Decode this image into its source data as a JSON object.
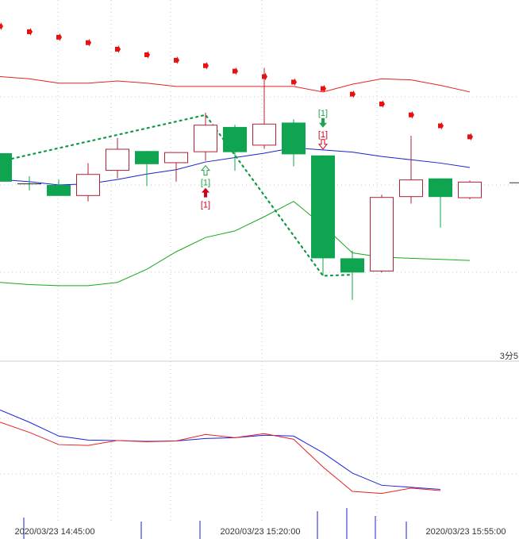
{
  "chart_data": {
    "type": "candlestick",
    "timeframe_label": "3分5",
    "x_tick_labels": [
      "2020/03/23 14:45:00",
      "2020/03/23 15:20:00",
      "2020/03/23 15:55:00"
    ],
    "candles": [
      {
        "open": 94.5,
        "close": 93.2,
        "high": 94.5,
        "low": 93.2
      },
      {
        "open": 93.1,
        "close": 93.05,
        "high": 93.45,
        "low": 92.8
      },
      {
        "open": 93.05,
        "close": 92.55,
        "high": 93.3,
        "low": 92.55
      },
      {
        "open": 92.55,
        "close": 93.55,
        "high": 94.05,
        "low": 92.3
      },
      {
        "open": 93.7,
        "close": 94.7,
        "high": 95.2,
        "low": 93.35
      },
      {
        "open": 94.6,
        "close": 94.0,
        "high": 94.6,
        "low": 93.0
      },
      {
        "open": 94.05,
        "close": 94.55,
        "high": 94.55,
        "low": 93.2
      },
      {
        "open": 94.55,
        "close": 95.8,
        "high": 96.35,
        "low": 94.15
      },
      {
        "open": 95.7,
        "close": 94.55,
        "high": 95.8,
        "low": 93.7
      },
      {
        "open": 94.85,
        "close": 95.85,
        "high": 98.4,
        "low": 94.7
      },
      {
        "open": 95.9,
        "close": 94.45,
        "high": 96.05,
        "low": 93.9
      },
      {
        "open": 94.4,
        "close": 89.7,
        "high": 94.4,
        "low": 88.9
      },
      {
        "open": 89.7,
        "close": 89.05,
        "high": 90.05,
        "low": 87.8
      },
      {
        "open": 89.1,
        "close": 92.5,
        "high": 92.6,
        "low": 89.05
      },
      {
        "open": 92.5,
        "close": 93.3,
        "high": 95.3,
        "low": 92.2
      },
      {
        "open": 93.35,
        "close": 92.5,
        "high": 93.35,
        "low": 91.1
      },
      {
        "open": 92.45,
        "close": 93.2,
        "high": 93.25,
        "low": 92.4
      }
    ],
    "bollinger_upper": [
      98.0,
      97.9,
      97.7,
      97.7,
      97.8,
      97.7,
      97.55,
      97.55,
      97.55,
      97.55,
      97.55,
      97.3,
      97.65,
      97.9,
      97.85,
      97.6,
      97.3
    ],
    "bollinger_mid": [
      93.3,
      93.2,
      93.05,
      93.1,
      93.3,
      93.55,
      93.75,
      94.1,
      94.3,
      94.5,
      94.75,
      94.65,
      94.55,
      94.35,
      94.2,
      94.05,
      93.85
    ],
    "bollinger_lower": [
      88.6,
      88.5,
      88.45,
      88.45,
      88.6,
      89.2,
      90.0,
      90.65,
      90.95,
      91.6,
      92.3,
      91.2,
      89.95,
      89.75,
      89.7,
      89.65,
      89.6
    ],
    "sar_dots": [
      100.3,
      100.05,
      99.8,
      99.55,
      99.25,
      99.0,
      98.75,
      98.5,
      98.25,
      98.0,
      97.75,
      97.45,
      97.2,
      96.75,
      96.25,
      95.75,
      95.25
    ],
    "signals": [
      {
        "candle": 7,
        "text": "[1]",
        "type": "buy-hollow",
        "position": "below",
        "color": "#20a050"
      },
      {
        "candle": 7,
        "text": "[1]",
        "type": "buy-solid",
        "position": "below",
        "color": "#d0021b"
      },
      {
        "candle": 11,
        "text": "[1]",
        "type": "sell-solid",
        "position": "above",
        "color": "#20a050"
      },
      {
        "candle": 11,
        "text": "[1]",
        "type": "sell-hollow",
        "position": "above",
        "color": "#d0021b"
      }
    ],
    "zigzag": [
      {
        "candle": 0,
        "price": 94.25
      },
      {
        "candle": 7,
        "price": 96.25
      },
      {
        "candle": 11,
        "price": 88.9
      },
      {
        "candle": 12,
        "price": 88.95
      }
    ],
    "indicator": {
      "red_series": [
        75.0,
        72.5,
        69.5,
        69.3,
        70.5,
        70.2,
        70.4,
        72.0,
        71.2,
        72.2,
        70.8,
        64.0,
        58.0,
        57.5,
        58.8,
        58.2,
        null
      ],
      "blue_series": [
        78.0,
        75.0,
        71.6,
        70.6,
        70.5,
        70.3,
        70.4,
        71.0,
        71.2,
        71.8,
        71.6,
        67.5,
        62.5,
        59.5,
        59.0,
        58.5,
        null
      ],
      "ylim": [
        50,
        90
      ]
    },
    "main_ylim": [
      85.0,
      101.5
    ],
    "colors": {
      "up": "#b22234",
      "down": "#0fa44f",
      "boll_upper": "#e52222",
      "boll_mid": "#1a22cc",
      "boll_lower": "#1aa81a",
      "sar": "#e81010",
      "zigzag": "#0d9a45",
      "ind_red": "#e52222",
      "ind_blue": "#1a22dd",
      "grid": "#c8c8c8"
    }
  }
}
